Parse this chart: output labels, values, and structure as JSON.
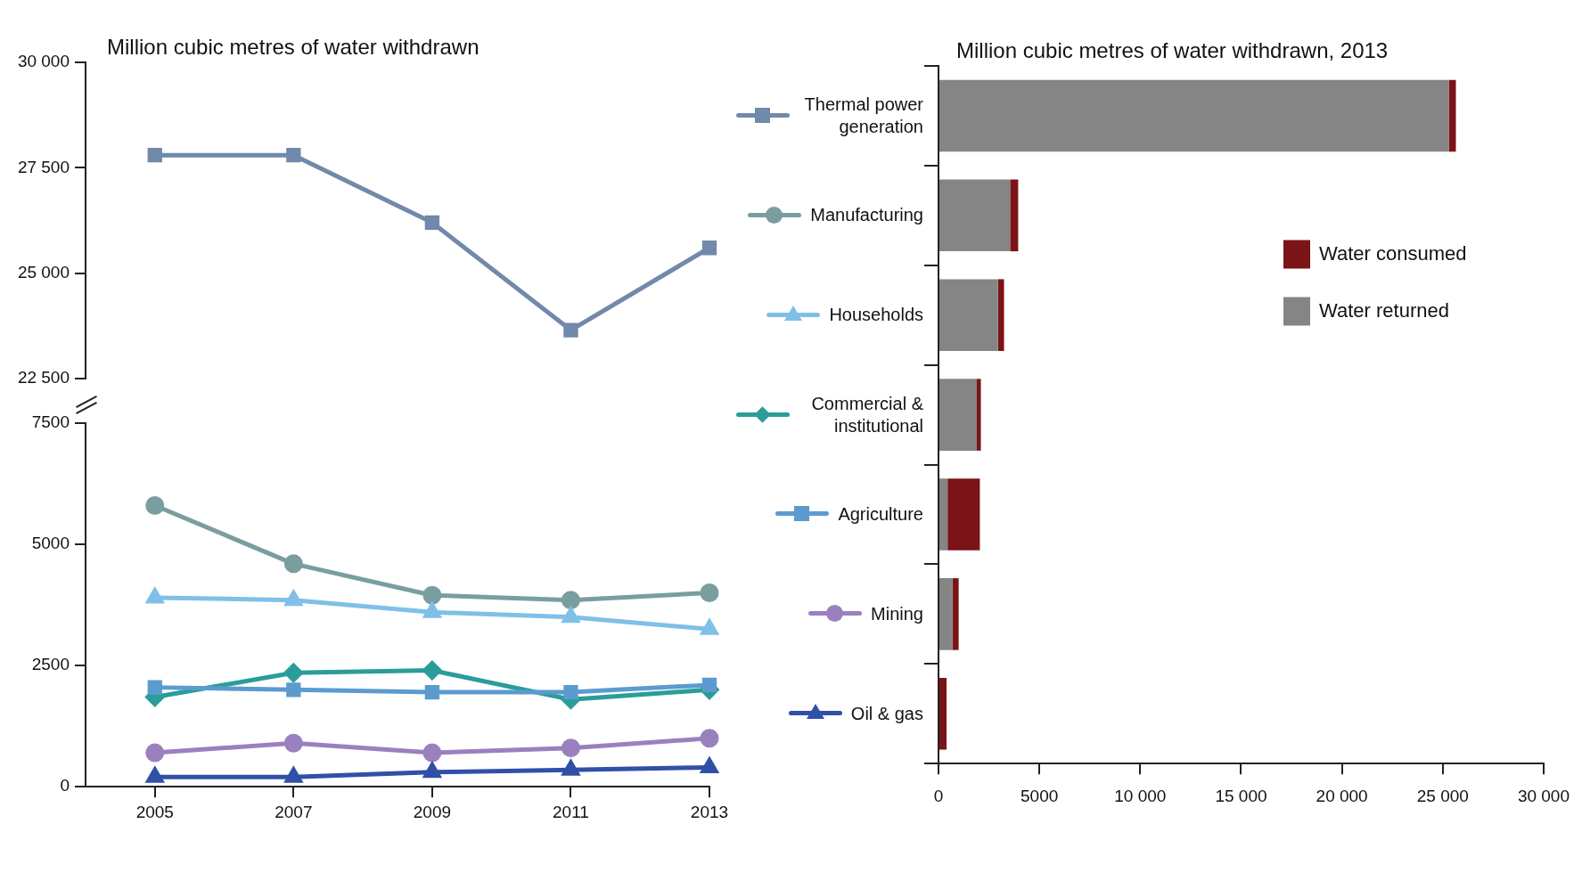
{
  "chart_data": [
    {
      "type": "line",
      "title": "Million cubic metres of water withdrawn",
      "x": [
        2005,
        2007,
        2009,
        2011,
        2013
      ],
      "xlim": [
        2004,
        2013
      ],
      "xticks": [
        2005,
        2007,
        2009,
        2011,
        2013
      ],
      "ylim": [
        22500,
        30000
      ],
      "yticks": [
        {
          "value": 22500,
          "label": "22 500"
        },
        {
          "value": 25000,
          "label": "25 000"
        },
        {
          "value": 27500,
          "label": "27 500"
        },
        {
          "value": 30000,
          "label": "30 000"
        }
      ],
      "tick_labels": "y",
      "legend": "right",
      "series": [
        {
          "name": "Thermal power generation",
          "color": "#7189aa",
          "marker": "square",
          "values": [
            27800,
            27800,
            26200,
            23650,
            25600
          ]
        }
      ]
    },
    {
      "type": "line",
      "x": [
        2005,
        2007,
        2009,
        2011,
        2013
      ],
      "xlim": [
        2004,
        2013
      ],
      "xticks": [
        2005,
        2007,
        2009,
        2011,
        2013
      ],
      "ylim": [
        0,
        7500
      ],
      "yticks": [
        0,
        2500,
        5000,
        7500
      ],
      "legend": "right",
      "series": [
        {
          "name": "Manufacturing",
          "color": "#7a9ea0",
          "marker": "circle",
          "values": [
            5800,
            4600,
            3950,
            3850,
            4000
          ]
        },
        {
          "name": "Households",
          "color": "#80c0e8",
          "marker": "triangle",
          "values": [
            3900,
            3850,
            3600,
            3500,
            3250
          ]
        },
        {
          "name": "Commercial & institutional",
          "color": "#2a9d9a",
          "marker": "diamond",
          "values": [
            1850,
            2350,
            2400,
            1800,
            2000
          ]
        },
        {
          "name": "Agriculture",
          "color": "#5b9bd0",
          "marker": "square",
          "values": [
            2050,
            2000,
            1950,
            1950,
            2100
          ]
        },
        {
          "name": "Mining",
          "color": "#9b80c0",
          "marker": "circle",
          "values": [
            700,
            900,
            700,
            800,
            1000
          ]
        },
        {
          "name": "Oil & gas",
          "color": "#3050a8",
          "marker": "triangle",
          "values": [
            200,
            200,
            300,
            350,
            400
          ]
        }
      ]
    },
    {
      "type": "bar",
      "orientation": "horizontal",
      "stacked": true,
      "title": "Million cubic metres of water withdrawn, 2013",
      "categories": [
        null,
        null,
        null,
        null,
        null,
        null,
        null
      ],
      "xlim": [
        0,
        30000
      ],
      "xticks": [
        0,
        5000,
        {
          "value": 10000,
          "label": "10 000"
        },
        {
          "value": 15000,
          "label": "15 000"
        },
        {
          "value": 20000,
          "label": "20 000"
        },
        {
          "value": 25000,
          "label": "25 000"
        },
        {
          "value": 30000,
          "label": "30 000"
        }
      ],
      "legend": "top right",
      "series": [
        {
          "name": "Water returned",
          "color": "#858585",
          "values": [
            25300,
            3550,
            2950,
            1900,
            450,
            700,
            0
          ]
        },
        {
          "name": "Water consumed",
          "color": "#7b1416",
          "values": [
            350,
            400,
            300,
            200,
            1600,
            300,
            400
          ]
        }
      ]
    }
  ]
}
